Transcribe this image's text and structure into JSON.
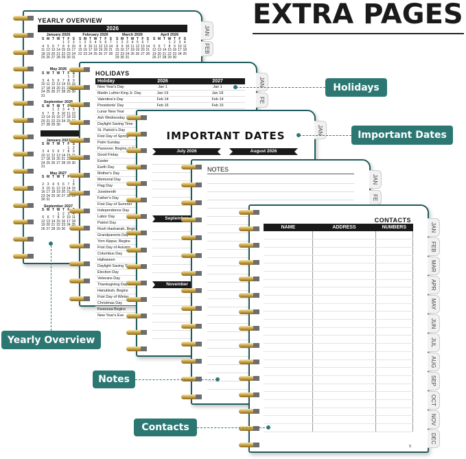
{
  "headline": "EXTRA PAGES",
  "accent_color": "#2d7773",
  "border_color": "#1f5a5c",
  "callouts": {
    "holidays": "Holidays",
    "important_dates": "Important Dates",
    "yearly_overview": "Yearly Overview",
    "notes": "Notes",
    "contacts": "Contacts"
  },
  "yearly": {
    "title": "YEARLY OVERVIEW",
    "year": "2026",
    "weekdays": [
      "S",
      "M",
      "T",
      "W",
      "T",
      "F",
      "S"
    ],
    "months": [
      "January 2026",
      "February 2026",
      "March 2026",
      "April 2026",
      "May 2026",
      "September 2026",
      "January 2027",
      "May 2027",
      "September 2027"
    ]
  },
  "holidays": {
    "title": "HOLIDAYS",
    "headers": [
      "Holiday",
      "2026",
      "2027"
    ],
    "rows": [
      [
        "New Year's Day",
        "Jan 1",
        "Jan 1"
      ],
      [
        "Martin Luther King Jr. Day",
        "Jan 19",
        "Jan 18"
      ],
      [
        "Valentine's Day",
        "Feb 14",
        "Feb 14"
      ],
      [
        "Presidents' Day",
        "Feb 16",
        "Feb 15"
      ],
      [
        "Lunar New Year",
        "",
        ""
      ],
      [
        "Ash Wednesday",
        "",
        ""
      ],
      [
        "Daylight Saving Time",
        "",
        ""
      ],
      [
        "St. Patrick's Day",
        "",
        ""
      ],
      [
        "First Day of Spring",
        "",
        ""
      ],
      [
        "Palm Sunday",
        "",
        ""
      ],
      [
        "Passover, Begins at Sundown",
        "",
        ""
      ],
      [
        "Good Friday",
        "",
        ""
      ],
      [
        "Easter",
        "",
        ""
      ],
      [
        "Earth Day",
        "",
        ""
      ],
      [
        "Mother's Day",
        "",
        ""
      ],
      [
        "Memorial Day",
        "",
        ""
      ],
      [
        "Flag Day",
        "",
        ""
      ],
      [
        "Juneteenth",
        "",
        ""
      ],
      [
        "Father's Day",
        "",
        ""
      ],
      [
        "First Day of Summer",
        "",
        ""
      ],
      [
        "Independence Day",
        "",
        ""
      ],
      [
        "Labor Day",
        "",
        ""
      ],
      [
        "Patriot Day",
        "",
        ""
      ],
      [
        "Rosh Hashanah, Begins",
        "",
        ""
      ],
      [
        "Grandparents Day",
        "",
        ""
      ],
      [
        "Yom Kippur, Begins",
        "",
        ""
      ],
      [
        "First Day of Autumn",
        "",
        ""
      ],
      [
        "Columbus Day",
        "",
        ""
      ],
      [
        "Halloween",
        "",
        ""
      ],
      [
        "Daylight Saving Time",
        "",
        ""
      ],
      [
        "Election Day",
        "",
        ""
      ],
      [
        "Veterans Day",
        "",
        ""
      ],
      [
        "Thanksgiving Day",
        "",
        ""
      ],
      [
        "Hanukkah, Begins",
        "",
        ""
      ],
      [
        "First Day of Winter",
        "",
        ""
      ],
      [
        "Christmas Day",
        "",
        ""
      ],
      [
        "Kwanzaa Begins",
        "",
        ""
      ],
      [
        "New Year's Eve",
        "",
        ""
      ]
    ]
  },
  "important": {
    "title": "IMPORTANT DATES",
    "bands": [
      "July 2026",
      "August 2026",
      "September",
      "November"
    ]
  },
  "notes": {
    "title": "NOTES"
  },
  "contacts": {
    "title": "CONTACTS",
    "headers": [
      "NAME",
      "ADDRESS",
      "NUMBERS"
    ],
    "page_number": "5"
  },
  "tabs": [
    "JAN",
    "FEB",
    "MAR",
    "APR",
    "MAY",
    "JUN",
    "JUL",
    "AUG",
    "SEP",
    "OCT",
    "NOV",
    "DEC"
  ],
  "partial_tab": "FE"
}
